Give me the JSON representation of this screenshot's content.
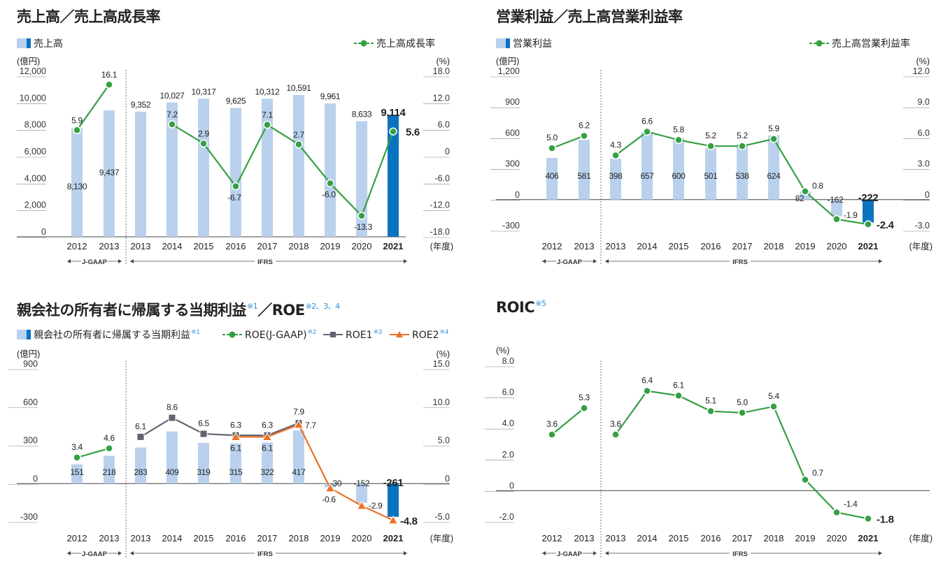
{
  "colors": {
    "bar": "#b9d1ec",
    "bar_highlight": "#0a73c0",
    "line_green": "#34a042",
    "line_gray": "#5f6470",
    "line_orange": "#ea7126",
    "note": "#2a8fd6",
    "axis": "#444444"
  },
  "common": {
    "years": [
      "2012",
      "2013",
      "2013",
      "2014",
      "2015",
      "2016",
      "2017",
      "2018",
      "2019",
      "2020",
      "2021"
    ],
    "year_unit": "(年度)",
    "jgaap_label": "J-GAAP",
    "ifrs_label": "IFRS",
    "left_unit": "(億円)",
    "right_unit": "(%)"
  },
  "charts": {
    "sales": {
      "title": "売上高／売上高成長率",
      "title_note": "",
      "legend_bar": "売上高",
      "legend_line": "売上高成長率",
      "left_ticks": [
        "12,000",
        "10,000",
        "8,000",
        "6,000",
        "4,000",
        "2,000",
        "0"
      ],
      "right_ticks": [
        "18.0",
        "12.0",
        "6.0",
        "0",
        "-6.0",
        "-12.0",
        "-18.0"
      ]
    },
    "op": {
      "title": "営業利益／売上高営業利益率",
      "title_note": "",
      "legend_bar": "営業利益",
      "legend_line": "売上高営業利益率",
      "left_ticks": [
        "1,200",
        "900",
        "600",
        "300",
        "0",
        "-300"
      ],
      "right_ticks": [
        "12.0",
        "9.0",
        "6.0",
        "3.0",
        "0",
        "-3.0"
      ]
    },
    "ni": {
      "title": "親会社の所有者に帰属する当期利益",
      "title_note": "※1",
      "title_b": "／ROE",
      "title_b_note": "※2、3、4",
      "legend_bar": "親会社の所有者に帰属する当期利益",
      "legend_bar_note": "※1",
      "legend_l1": "ROE(J-GAAP)",
      "legend_l1_note": "※2",
      "legend_l2": "ROE1",
      "legend_l2_note": "※3",
      "legend_l3": "ROE2",
      "legend_l3_note": "※4",
      "left_ticks": [
        "900",
        "600",
        "300",
        "0",
        "-300"
      ],
      "right_ticks": [
        "15.0",
        "10.0",
        "5.0",
        "0",
        "-5.0"
      ]
    },
    "roic": {
      "title": "ROIC",
      "title_note": "※5",
      "left_ticks": [
        "8.0",
        "6.0",
        "4.0",
        "2.0",
        "0",
        "-2.0"
      ]
    }
  },
  "chart_data": [
    {
      "type": "bar",
      "title": "売上高／売上高成長率",
      "categories": [
        "2012",
        "2013",
        "2013",
        "2014",
        "2015",
        "2016",
        "2017",
        "2018",
        "2019",
        "2020",
        "2021"
      ],
      "series": [
        {
          "name": "売上高",
          "values": [
            8130,
            9437,
            9352,
            10027,
            10317,
            9625,
            10312,
            10591,
            9961,
            8633,
            9114
          ],
          "labels": [
            "8,130",
            "9,437",
            "9,352",
            "10,027",
            "10,317",
            "9,625",
            "10,312",
            "10,591",
            "9,961",
            "8,633",
            "9,114"
          ]
        },
        {
          "name": "売上高成長率",
          "type": "line",
          "axis": "right",
          "values": [
            5.9,
            16.1,
            null,
            7.2,
            2.9,
            -6.7,
            7.1,
            2.7,
            -6.0,
            -13.3,
            5.6
          ],
          "labels": [
            "5.9",
            "16.1",
            "",
            "7.2",
            "2.9",
            "-6.7",
            "7.1",
            "2.7",
            "-6.0",
            "-13.3",
            "5.6"
          ]
        }
      ],
      "ylabel": "(億円)",
      "y2label": "(%)",
      "ylim": [
        0,
        12000
      ],
      "y2lim": [
        -18,
        18
      ]
    },
    {
      "type": "bar",
      "title": "営業利益／売上高営業利益率",
      "categories": [
        "2012",
        "2013",
        "2013",
        "2014",
        "2015",
        "2016",
        "2017",
        "2018",
        "2019",
        "2020",
        "2021"
      ],
      "series": [
        {
          "name": "営業利益",
          "values": [
            406,
            581,
            398,
            657,
            600,
            501,
            538,
            624,
            82,
            -162,
            -222
          ],
          "labels": [
            "406",
            "581",
            "398",
            "657",
            "600",
            "501",
            "538",
            "624",
            "82",
            "-162",
            "-222"
          ]
        },
        {
          "name": "売上高営業利益率",
          "type": "line",
          "axis": "right",
          "values": [
            5.0,
            6.2,
            4.3,
            6.6,
            5.8,
            5.2,
            5.2,
            5.9,
            0.8,
            -1.9,
            -2.4
          ],
          "labels": [
            "5.0",
            "6.2",
            "4.3",
            "6.6",
            "5.8",
            "5.2",
            "5.2",
            "5.9",
            "0.8",
            "-1.9",
            "-2.4"
          ]
        }
      ],
      "ylabel": "(億円)",
      "y2label": "(%)",
      "ylim": [
        -300,
        1200
      ],
      "y2lim": [
        -3,
        12
      ]
    },
    {
      "type": "bar",
      "title": "親会社の所有者に帰属する当期利益／ROE",
      "categories": [
        "2012",
        "2013",
        "2013",
        "2014",
        "2015",
        "2016",
        "2017",
        "2018",
        "2019",
        "2020",
        "2021"
      ],
      "series": [
        {
          "name": "親会社の所有者に帰属する当期利益",
          "values": [
            151,
            218,
            283,
            409,
            319,
            315,
            322,
            417,
            -30,
            -152,
            -261
          ],
          "labels": [
            "151",
            "218",
            "283",
            "409",
            "319",
            "315",
            "322",
            "417",
            "-30",
            "-152",
            "-261"
          ]
        },
        {
          "name": "ROE(J-GAAP)",
          "type": "line",
          "axis": "right",
          "values": [
            3.4,
            4.6,
            null,
            null,
            null,
            null,
            null,
            null,
            null,
            null,
            null
          ],
          "labels": [
            "3.4",
            "4.6",
            "",
            "",
            "",
            "",
            "",
            "",
            "",
            "",
            ""
          ]
        },
        {
          "name": "ROE1",
          "type": "line",
          "axis": "right",
          "values": [
            null,
            null,
            6.1,
            8.6,
            6.5,
            6.3,
            6.3,
            7.9,
            null,
            null,
            null
          ],
          "labels": [
            "",
            "",
            "6.1",
            "8.6",
            "6.5",
            "6.3",
            "6.3",
            "7.9",
            "",
            "",
            ""
          ]
        },
        {
          "name": "ROE2",
          "type": "line",
          "axis": "right",
          "values": [
            null,
            null,
            null,
            null,
            null,
            6.1,
            6.1,
            7.7,
            -0.6,
            -2.9,
            -4.8
          ],
          "labels": [
            "",
            "",
            "",
            "",
            "",
            "6.1",
            "6.1",
            "7.7",
            "-0.6",
            "-2.9",
            "-4.8"
          ]
        }
      ],
      "ylabel": "(億円)",
      "y2label": "(%)",
      "ylim": [
        -300,
        900
      ],
      "y2lim": [
        -5,
        15
      ]
    },
    {
      "type": "line",
      "title": "ROIC",
      "categories": [
        "2012",
        "2013",
        "2013",
        "2014",
        "2015",
        "2016",
        "2017",
        "2018",
        "2019",
        "2020",
        "2021"
      ],
      "series": [
        {
          "name": "ROIC",
          "values": [
            3.6,
            5.3,
            3.6,
            6.4,
            6.1,
            5.1,
            5.0,
            5.4,
            0.7,
            -1.4,
            -1.8
          ],
          "labels": [
            "3.6",
            "5.3",
            "3.6",
            "6.4",
            "6.1",
            "5.1",
            "5.0",
            "5.4",
            "0.7",
            "-1.4",
            "-1.8"
          ]
        }
      ],
      "ylabel": "(%)",
      "ylim": [
        -2,
        8
      ]
    }
  ]
}
